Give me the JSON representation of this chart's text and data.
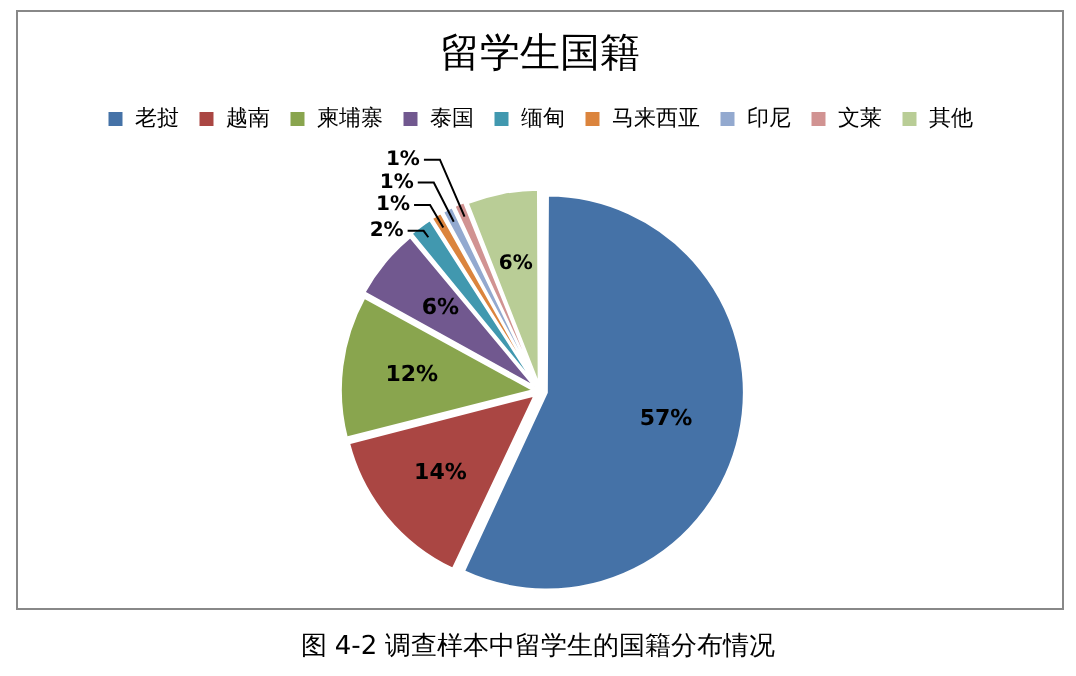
{
  "chart_data": {
    "type": "pie",
    "title": "留学生国籍",
    "categories": [
      "老挝",
      "越南",
      "柬埔寨",
      "泰国",
      "缅甸",
      "马来西亚",
      "印尼",
      "文莱",
      "其他"
    ],
    "values": [
      57,
      14,
      12,
      6,
      2,
      1,
      1,
      1,
      6
    ],
    "value_labels": [
      "57%",
      "14%",
      "12%",
      "6%",
      "2%",
      "1%",
      "1%",
      "1%",
      "6%"
    ],
    "colors": [
      "#4572a7",
      "#aa4643",
      "#89a54e",
      "#71588f",
      "#4198af",
      "#db843d",
      "#93a9cf",
      "#d19392",
      "#b9cd96"
    ],
    "legend": "top",
    "annotations": [
      "图 4-2 调查样本中留学生的国籍分布情况"
    ]
  }
}
